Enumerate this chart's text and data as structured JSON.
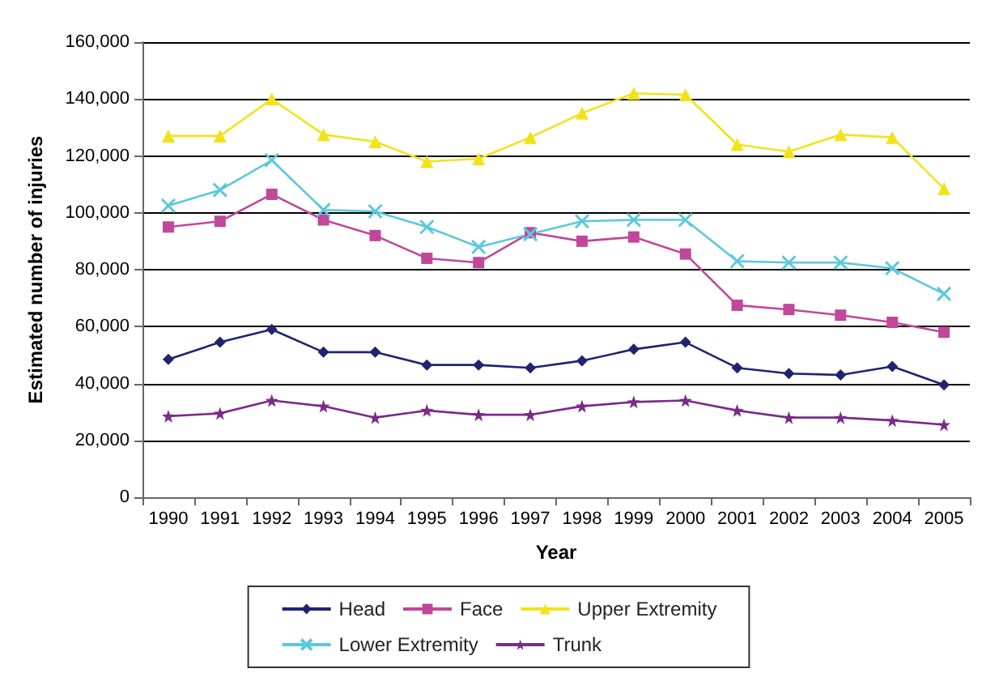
{
  "chart_data": {
    "type": "line",
    "xlabel": "Year",
    "ylabel": "Estimated number of injuries",
    "categories": [
      "1990",
      "1991",
      "1992",
      "1993",
      "1994",
      "1995",
      "1996",
      "1997",
      "1998",
      "1999",
      "2000",
      "2001",
      "2002",
      "2003",
      "2004",
      "2005"
    ],
    "ylim": [
      0,
      160000
    ],
    "yticks": [
      0,
      {
        "value": 20000,
        "label": "20,000"
      },
      {
        "value": 40000,
        "label": "40,000"
      },
      {
        "value": 60000,
        "label": "60,000"
      },
      {
        "value": 80000,
        "label": "80,000"
      },
      {
        "value": 100000,
        "label": "100,000"
      },
      {
        "value": 120000,
        "label": "120,000"
      },
      {
        "value": 140000,
        "label": "140,000"
      },
      {
        "value": 160000,
        "label": "160,000"
      }
    ],
    "grid": "y",
    "legend": "bottom",
    "series": [
      {
        "name": "Head",
        "color": "#1f2470",
        "marker": "diamond",
        "values": [
          48500,
          54500,
          59000,
          51000,
          51000,
          46500,
          46500,
          45500,
          48000,
          52000,
          54500,
          45500,
          43500,
          43000,
          46000,
          39500
        ]
      },
      {
        "name": "Face",
        "color": "#c0479a",
        "marker": "square",
        "values": [
          95000,
          97000,
          106500,
          97500,
          92000,
          84000,
          82500,
          93000,
          90000,
          91500,
          85500,
          67500,
          66000,
          64000,
          61500,
          58000
        ]
      },
      {
        "name": "Upper Extremity",
        "color": "#f2e21a",
        "marker": "triangle",
        "values": [
          127000,
          127000,
          140000,
          127500,
          125000,
          118000,
          119000,
          126500,
          135000,
          142000,
          141500,
          124000,
          121500,
          127500,
          126500,
          108500
        ]
      },
      {
        "name": "Lower Extremity",
        "color": "#5bc8dc",
        "marker": "cross",
        "values": [
          102500,
          108000,
          118500,
          101000,
          100500,
          95000,
          88000,
          92500,
          97000,
          97500,
          97500,
          83000,
          82500,
          82500,
          80500,
          71500
        ]
      },
      {
        "name": "Trunk",
        "color": "#7b2a8a",
        "marker": "star",
        "values": [
          28500,
          29500,
          34000,
          32000,
          28000,
          30500,
          29000,
          29000,
          32000,
          33500,
          34000,
          30500,
          28000,
          28000,
          27000,
          25500
        ]
      }
    ]
  }
}
